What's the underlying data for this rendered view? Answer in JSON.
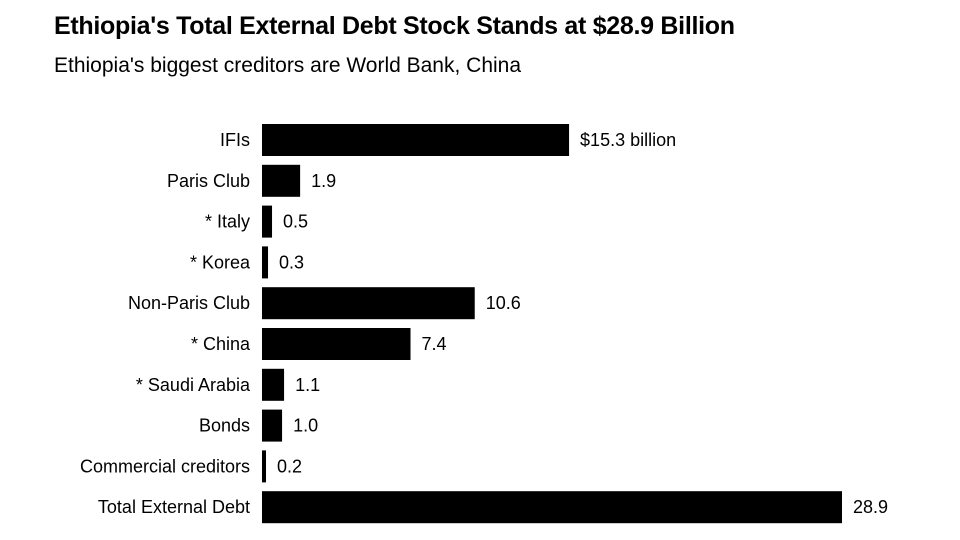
{
  "header": {
    "title": "Ethiopia's Total External Debt Stock Stands at $28.9 Billion",
    "subtitle": "Ethiopia's biggest creditors are World Bank, China"
  },
  "colors": {
    "bar": "#000000",
    "background": "#ffffff",
    "text": "#000000"
  },
  "chart_data": {
    "type": "bar",
    "orientation": "horizontal",
    "title": "Ethiopia's Total External Debt Stock Stands at $28.9 Billion",
    "subtitle": "Ethiopia's biggest creditors are World Bank, China",
    "categories": [
      "IFIs",
      "Paris Club",
      "* Italy",
      "* Korea",
      "Non-Paris Club",
      "* China",
      "* Saudi Arabia",
      "Bonds",
      "Commercial creditors",
      "Total External Debt"
    ],
    "values": [
      15.3,
      1.9,
      0.5,
      0.3,
      10.6,
      7.4,
      1.1,
      1.0,
      0.2,
      28.9
    ],
    "value_labels": [
      "$15.3 billion",
      "1.9",
      "0.5",
      "0.3",
      "10.6",
      "7.4",
      "1.1",
      "1.0",
      "0.2",
      "28.9"
    ],
    "xlabel": "",
    "ylabel": "",
    "xlim": [
      0,
      28.9
    ],
    "grid": false,
    "legend": "none"
  }
}
